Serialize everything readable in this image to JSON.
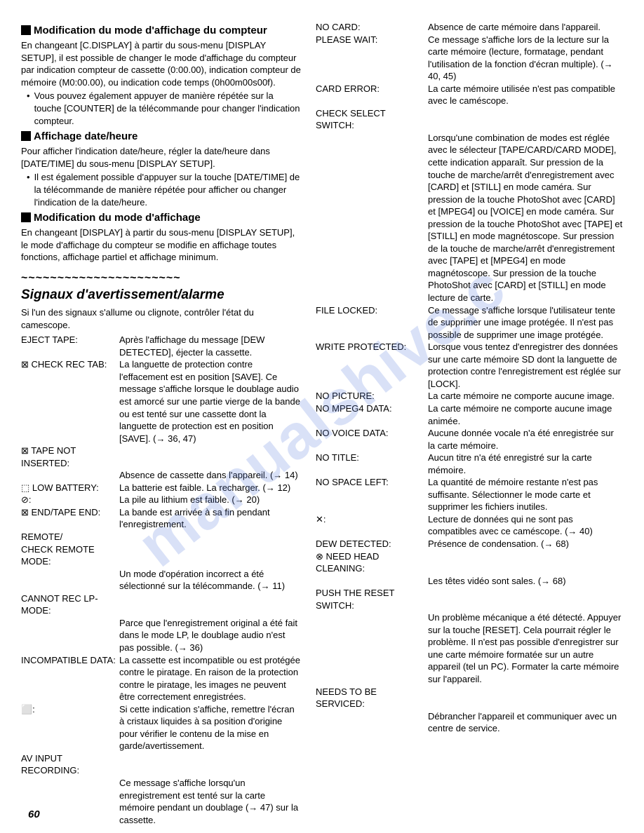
{
  "left": {
    "h1_title": "Modification du mode d'affichage du compteur",
    "h1_body": "En changeant [C.DISPLAY] à partir du sous-menu [DISPLAY SETUP], il est possible de changer le mode d'affichage du compteur par indication compteur de cassette (0:00.00), indication compteur de mémoire (M0:00.00), ou indication code temps (0h00m00s00f).",
    "h1_bullet": "Vous pouvez également appuyer de manière répétée sur la touche [COUNTER] de la télécommande pour changer l'indication compteur.",
    "h2_title": "Affichage date/heure",
    "h2_body": "Pour afficher l'indication date/heure, régler la date/heure dans [DATE/TIME] du sous-menu [DISPLAY SETUP].",
    "h2_bullet": "Il est également possible d'appuyer sur la touche [DATE/TIME] de la télécommande de manière répétée pour afficher ou changer l'indication de la date/heure.",
    "h3_title": "Modification du mode d'affichage",
    "h3_body": "En changeant [DISPLAY] à partir du sous-menu [DISPLAY SETUP], le mode d'affichage du compteur se modifie en affichage toutes fonctions, affichage partiel et affichage minimum.",
    "wavy": "~~~~~~~~~~~~~~~~~~~~~~",
    "section_title": "Signaux d'avertissement/alarme",
    "intro": "Si l'un des signaux s'allume ou clignote, contrôler l'état du camescope.",
    "defs": [
      {
        "label": "EJECT TAPE:",
        "value": "Après l'affichage du message [DEW DETECTED], éjecter la cassette."
      },
      {
        "label": "⊠ CHECK REC TAB:",
        "value": "La languette de protection contre l'effacement est en position [SAVE]. Ce message s'affiche lorsque le doublage audio est amorcé sur une partie vierge de la bande ou est tenté sur une cassette dont la languette de protection est en position [SAVE]. (→ 36, 47)"
      },
      {
        "label": "⊠ TAPE NOT INSERTED:",
        "value": ""
      },
      {
        "label": "",
        "value": "Absence de cassette dans l'appareil. (→ 14)"
      },
      {
        "label": "⬚ LOW BATTERY:",
        "value": "La batterie est faible. La recharger. (→ 12)"
      },
      {
        "label": "⊘:",
        "value": "La pile au lithium est faible. (→ 20)"
      },
      {
        "label": "⊠ END/TAPE END:",
        "value": "La bande est arrivée à sa fin pendant l'enregistrement."
      },
      {
        "label": "REMOTE/",
        "value": ""
      },
      {
        "label": "CHECK REMOTE MODE:",
        "value": ""
      },
      {
        "label": "",
        "value": "Un mode d'opération incorrect a été sélectionné sur la télécommande. (→ 11)"
      },
      {
        "label": "CANNOT REC LP-MODE:",
        "value": ""
      },
      {
        "label": "",
        "value": "Parce que l'enregistrement original a été fait dans le mode LP, le doublage audio n'est pas possible. (→ 36)"
      },
      {
        "label": "INCOMPATIBLE DATA:",
        "value": "La cassette est incompatible ou est protégée contre le piratage. En raison de la protection contre le piratage, les images ne peuvent être correctement enregistrées."
      },
      {
        "label": "⬜:",
        "value": "Si cette indication s'affiche, remettre l'écran à cristaux liquides à sa position d'origine pour vérifier le contenu de la mise en garde/avertissement."
      },
      {
        "label": "AV INPUT RECORDING:",
        "value": ""
      },
      {
        "label": "",
        "value": "Ce message s'affiche lorsqu'un enregistrement est tenté sur la carte mémoire pendant un doublage (→ 47) sur la cassette."
      }
    ]
  },
  "right": {
    "defs": [
      {
        "label": "NO CARD:",
        "value": "Absence de carte mémoire dans l'appareil."
      },
      {
        "label": "PLEASE WAIT:",
        "value": "Ce message s'affiche lors de la lecture sur la carte mémoire (lecture, formatage, pendant l'utilisation de la fonction d'écran multiple). (→ 40, 45)"
      },
      {
        "label": "CARD ERROR:",
        "value": "La carte mémoire utilisée n'est pas compatible avec le caméscope."
      },
      {
        "label": "CHECK SELECT SWITCH:",
        "value": ""
      },
      {
        "label": "",
        "value": "Lorsqu'une combination de modes est réglée avec le sélecteur [TAPE/CARD/CARD MODE], cette indication apparaît. Sur pression de la touche de marche/arrêt d'enregistrement avec [CARD] et [STILL] en mode caméra. Sur pression de la touche PhotoShot avec [CARD] et [MPEG4] ou [VOICE] en mode caméra. Sur pression de la touche PhotoShot avec [TAPE] et [STILL] en mode magnétoscope. Sur pression de la touche de marche/arrêt d'enregistrement avec [TAPE] et [MPEG4] en mode magnétoscope. Sur pression de la touche PhotoShot avec [CARD] et [STILL] en mode lecture de carte."
      },
      {
        "label": "FILE LOCKED:",
        "value": "Ce message s'affiche lorsque l'utilisateur tente de supprimer une image protégée. Il n'est pas possible de supprimer une image protégée."
      },
      {
        "label": "WRITE PROTECTED:",
        "value": "Lorsque vous tentez d'enregistrer des données sur une carte mémoire SD dont la languette de protection contre l'enregistrement est réglée sur [LOCK]."
      },
      {
        "label": "NO PICTURE:",
        "value": "La carte mémoire ne comporte aucune image."
      },
      {
        "label": "NO MPEG4 DATA:",
        "value": "La carte mémoire ne comporte aucune image animée."
      },
      {
        "label": "NO VOICE DATA:",
        "value": "Aucune donnée vocale n'a été enregistrée sur la carte mémoire."
      },
      {
        "label": "NO TITLE:",
        "value": "Aucun titre n'a été enregistré sur la carte mémoire."
      },
      {
        "label": "NO SPACE LEFT:",
        "value": "La quantité de mémoire restante n'est pas suffisante. Sélectionner le mode carte et supprimer les fichiers inutiles."
      },
      {
        "label": "✕:",
        "value": "Lecture de données qui ne sont pas compatibles avec ce caméscope. (→ 40)"
      },
      {
        "label": "DEW DETECTED:",
        "value": "Présence de condensation. (→ 68)"
      },
      {
        "label": "⊗ NEED HEAD CLEANING:",
        "value": ""
      },
      {
        "label": "",
        "value": "Les têtes vidéo sont sales. (→ 68)"
      },
      {
        "label": "PUSH THE RESET SWITCH:",
        "value": ""
      },
      {
        "label": "",
        "value": "Un problème mécanique a été détecté. Appuyer sur la touche [RESET]. Cela pourrait régler le problème. Il n'est pas possible d'enregistrer sur une carte mémoire formatée sur un autre appareil (tel un PC). Formater la carte mémoire sur l'appareil."
      },
      {
        "label": "NEEDS TO BE SERVICED:",
        "value": ""
      },
      {
        "label": "",
        "value": "Débrancher l'appareil et communiquer avec un centre de service."
      }
    ]
  },
  "page_num": "60",
  "watermark": "manualshive.c"
}
